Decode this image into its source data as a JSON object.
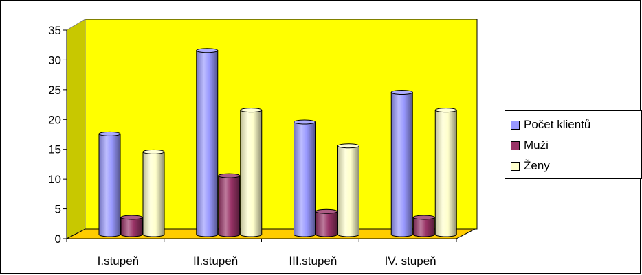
{
  "chart_data": {
    "type": "bar",
    "categories": [
      "I.stupeň",
      "II.stupeň",
      "III.stupeň",
      "IV. stupeň"
    ],
    "series": [
      {
        "name": "Počet klientů",
        "values": [
          17,
          31,
          19,
          24
        ],
        "color": "#9999ff"
      },
      {
        "name": "Muži",
        "values": [
          3,
          10,
          4,
          3
        ],
        "color": "#993366"
      },
      {
        "name": "Ženy",
        "values": [
          14,
          21,
          15,
          21
        ],
        "color": "#ffffcc"
      }
    ],
    "y_ticks": [
      "0",
      "5",
      "10",
      "15",
      "20",
      "25",
      "30",
      "35"
    ],
    "ylim": [
      0,
      35
    ],
    "grid": false,
    "legend_position": "right",
    "wall_color": "#ffff00",
    "floor_color": "#ffcc00",
    "style": "3d-cylinder"
  }
}
